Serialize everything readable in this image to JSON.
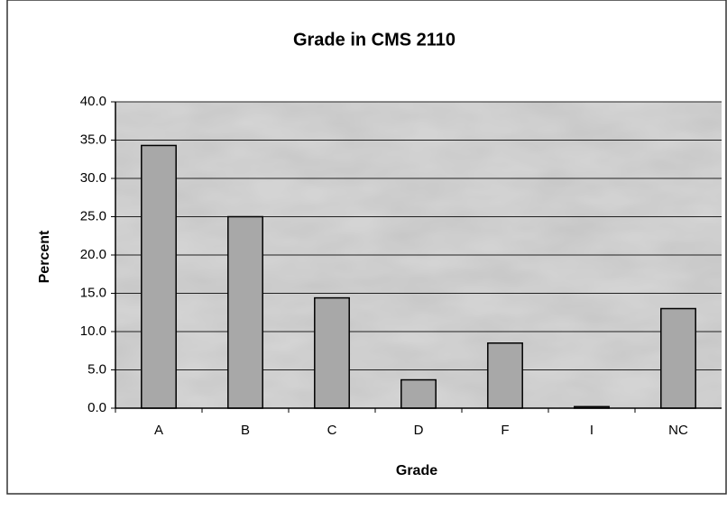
{
  "chart_data": {
    "type": "bar",
    "title": "Grade in CMS 2110",
    "x_label": "Grade",
    "y_label": "Percent",
    "categories": [
      "A",
      "B",
      "C",
      "D",
      "F",
      "I",
      "NC"
    ],
    "values": [
      34.3,
      25.0,
      14.4,
      3.7,
      8.5,
      0.2,
      13.0
    ],
    "color": "#a8a8a8",
    "ylim": [
      0,
      40
    ],
    "yticks": [
      {
        "value": 0,
        "label": "0.0"
      },
      {
        "value": 5,
        "label": "5.0"
      },
      {
        "value": 10,
        "label": "10.0"
      },
      {
        "value": 15,
        "label": "15.0"
      },
      {
        "value": 20,
        "label": "20.0"
      },
      {
        "value": 25,
        "label": "25.0"
      },
      {
        "value": 30,
        "label": "30.0"
      },
      {
        "value": 35,
        "label": "35.0"
      },
      {
        "value": 40,
        "label": "40.0"
      }
    ],
    "grid": true
  }
}
